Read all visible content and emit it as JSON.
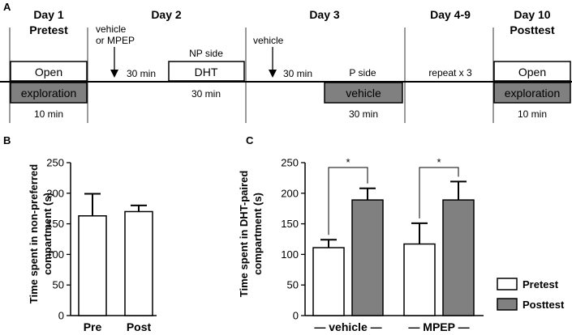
{
  "panels": {
    "a": "A",
    "b": "B",
    "c": "C"
  },
  "timeline": {
    "days": [
      {
        "line1": "Day 1",
        "line2": "Pretest"
      },
      {
        "line1": "Day 2",
        "line2": ""
      },
      {
        "line1": "Day 3",
        "line2": ""
      },
      {
        "line1": "Day 4-9",
        "line2": ""
      },
      {
        "line1": "Day 10",
        "line2": "Posttest"
      }
    ],
    "day1": {
      "box_top": "Open",
      "box_bottom": "exploration",
      "duration": "10 min"
    },
    "day2": {
      "injection_line1": "vehicle",
      "injection_line2": "or MPEP",
      "wait": "30 min",
      "side": "NP side",
      "box": "DHT",
      "duration": "30 min"
    },
    "day3": {
      "injection": "vehicle",
      "wait": "30 min",
      "side": "P side",
      "box": "vehicle",
      "duration": "30 min"
    },
    "day4_9": {
      "note": "repeat x 3"
    },
    "day10": {
      "box_top": "Open",
      "box_bottom": "exploration",
      "duration": "10 min"
    },
    "colors": {
      "grey_box": "#808080"
    }
  },
  "chart_data": [
    {
      "type": "bar",
      "panel": "B",
      "categories": [
        "Pre",
        "Post"
      ],
      "values": [
        163,
        170
      ],
      "errors": [
        36,
        10
      ],
      "ylabel": "Time spent in non-preferred compartment (s)",
      "ylabel_line1": "Time spent in non-preferred",
      "ylabel_line2": "compartment (s)",
      "ylim": [
        0,
        250
      ],
      "yticks": [
        "0",
        "50",
        "100",
        "150",
        "200",
        "250"
      ],
      "colors": [
        "#ffffff",
        "#ffffff"
      ]
    },
    {
      "type": "bar",
      "panel": "C",
      "categories": [
        "vehicle",
        "MPEP"
      ],
      "category_labels": [
        "— vehicle —",
        "— MPEP —"
      ],
      "series": [
        {
          "name": "Pretest",
          "values": [
            111,
            117
          ],
          "errors": [
            13,
            34
          ],
          "color": "#ffffff"
        },
        {
          "name": "Posttest",
          "values": [
            189,
            189
          ],
          "errors": [
            19,
            30
          ],
          "color": "#808080"
        }
      ],
      "significance": [
        "*",
        "*"
      ],
      "ylabel": "Time spent in DHT-paired compartment (s)",
      "ylabel_line1": "Time spent in DHT-paired",
      "ylabel_line2": "compartment (s)",
      "ylim": [
        0,
        250
      ],
      "yticks": [
        "0",
        "50",
        "100",
        "150",
        "200",
        "250"
      ],
      "legend_position": "bottom-right"
    }
  ]
}
